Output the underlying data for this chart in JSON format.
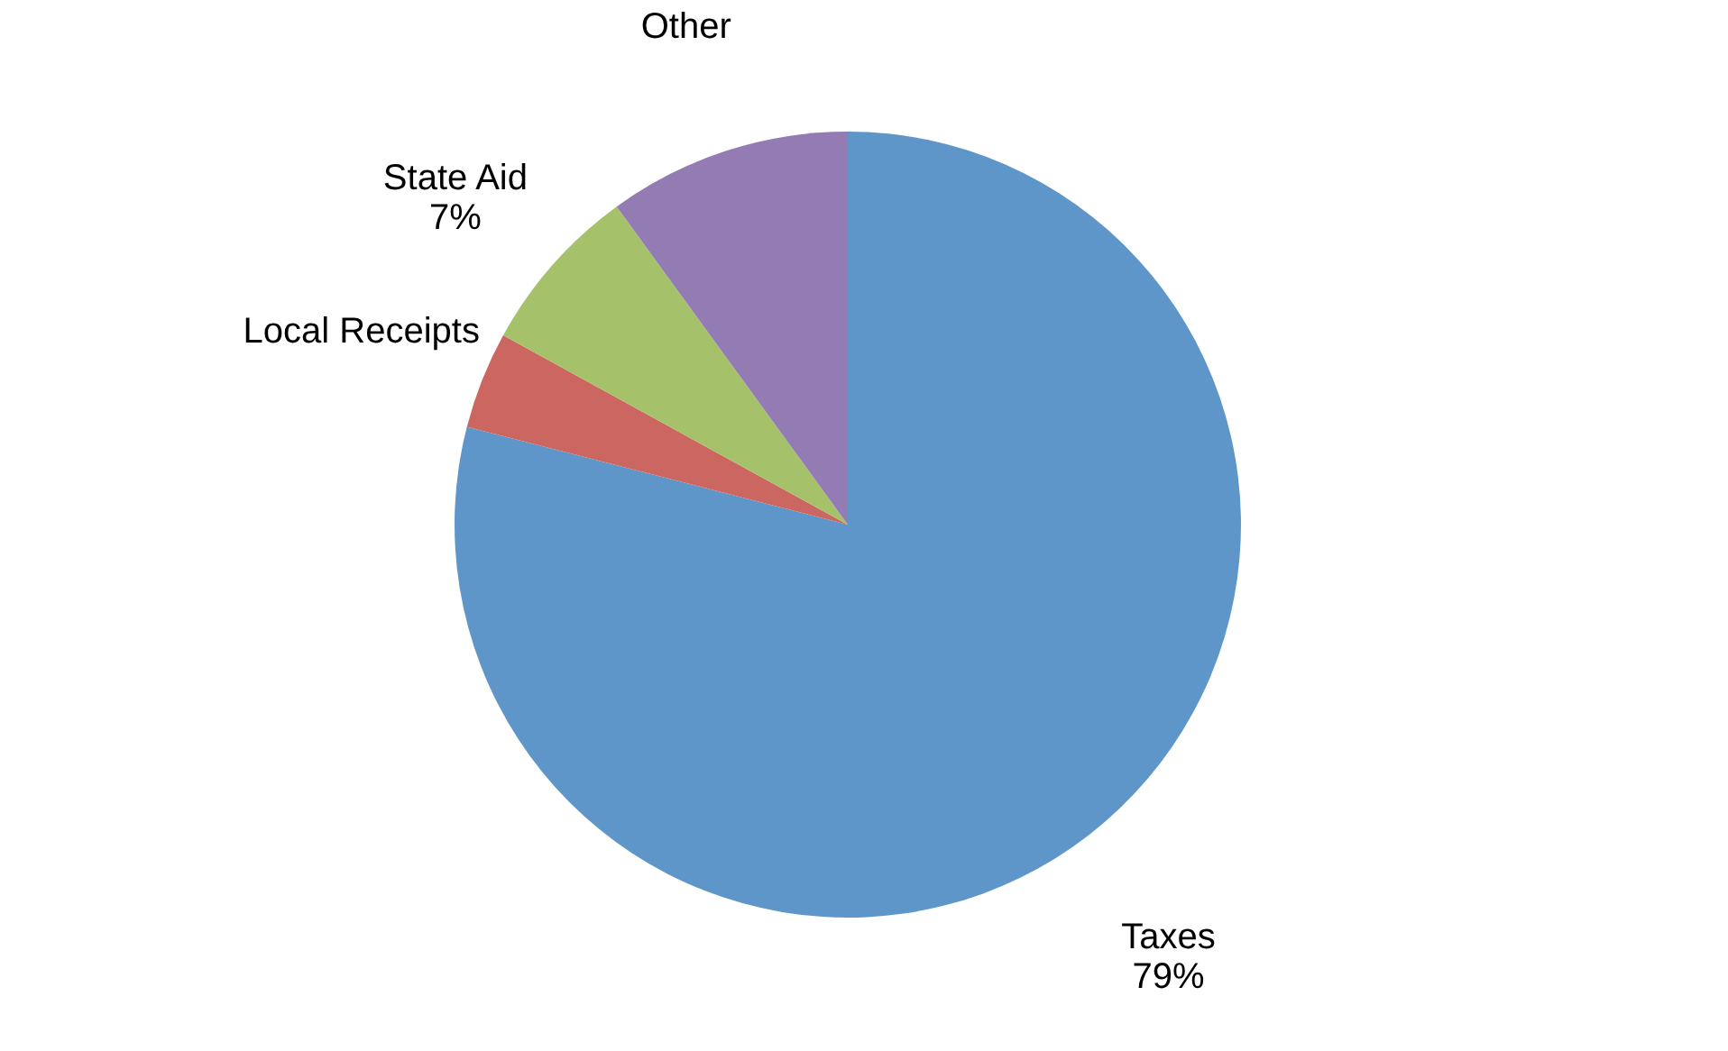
{
  "chart_data": {
    "type": "pie",
    "categories": [
      "Taxes",
      "Local Receipts",
      "State Aid",
      "Other"
    ],
    "values": [
      79,
      4,
      7,
      10
    ],
    "colors": [
      "#5f96c9",
      "#cc6660",
      "#a5c26a",
      "#937bb3"
    ],
    "value_labels": [
      "79%",
      null,
      "7%",
      null
    ]
  }
}
